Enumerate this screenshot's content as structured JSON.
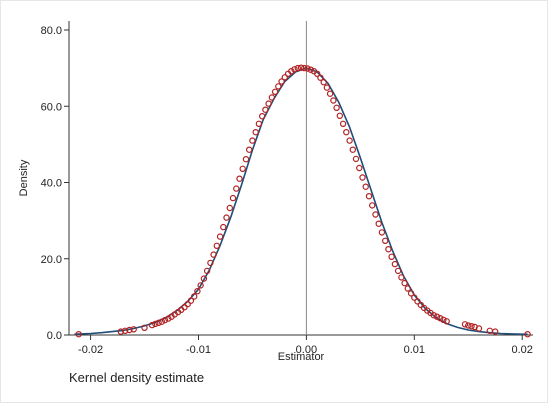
{
  "chart_data": {
    "type": "line",
    "title": "",
    "xlabel": "Estimator",
    "ylabel": "Density",
    "note": "Kernel density estimate",
    "xlim": [
      -0.022,
      0.021
    ],
    "ylim": [
      0,
      80
    ],
    "x_ticks": [
      -0.02,
      -0.01,
      0.0,
      0.01,
      0.02
    ],
    "x_tick_labels": [
      "-0.02",
      "-0.01",
      "0.00",
      "0.01",
      "0.02"
    ],
    "y_ticks": [
      0,
      20,
      40,
      60,
      80
    ],
    "y_tick_labels": [
      "0.0",
      "20.0",
      "40.0",
      "60.0",
      "80.0"
    ],
    "reference_line_x": 0.0,
    "grid": false,
    "legend": "none",
    "colors": {
      "curve": "#1f4e79",
      "points": "#b22222",
      "reference": "#888888",
      "axis": "#333333"
    },
    "series": [
      {
        "kind": "density-curve",
        "x": [
          -0.0215,
          -0.02,
          -0.019,
          -0.018,
          -0.017,
          -0.016,
          -0.015,
          -0.014,
          -0.013,
          -0.012,
          -0.011,
          -0.01,
          -0.009,
          -0.008,
          -0.007,
          -0.006,
          -0.005,
          -0.004,
          -0.003,
          -0.002,
          -0.001,
          0.0,
          0.001,
          0.002,
          0.003,
          0.004,
          0.005,
          0.006,
          0.007,
          0.008,
          0.009,
          0.01,
          0.011,
          0.012,
          0.013,
          0.014,
          0.015,
          0.016,
          0.017,
          0.018,
          0.019,
          0.02,
          0.0205
        ],
        "y": [
          0.2,
          0.4,
          0.6,
          0.9,
          1.2,
          1.7,
          2.4,
          3.3,
          4.6,
          6.4,
          8.8,
          12.0,
          17.0,
          23.5,
          31.0,
          39.5,
          48.5,
          56.5,
          62.0,
          66.5,
          69.0,
          70.0,
          69.0,
          66.0,
          61.0,
          54.5,
          46.5,
          38.0,
          29.5,
          22.0,
          15.5,
          10.5,
          7.0,
          4.6,
          3.0,
          2.0,
          1.3,
          0.9,
          0.6,
          0.4,
          0.3,
          0.2,
          0.2
        ]
      },
      {
        "kind": "estimate-points",
        "x": [
          -0.0211,
          -0.0172,
          -0.0168,
          -0.0164,
          -0.016,
          -0.015,
          -0.0143,
          -0.014,
          -0.0137,
          -0.0134,
          -0.0131,
          -0.0128,
          -0.0125,
          -0.0122,
          -0.0119,
          -0.0116,
          -0.0113,
          -0.011,
          -0.0107,
          -0.0104,
          -0.0101,
          -0.0098,
          -0.0095,
          -0.0092,
          -0.0089,
          -0.0086,
          -0.0083,
          -0.008,
          -0.0077,
          -0.0074,
          -0.0071,
          -0.0068,
          -0.0065,
          -0.0062,
          -0.0059,
          -0.0056,
          -0.0053,
          -0.005,
          -0.0047,
          -0.0044,
          -0.0041,
          -0.0038,
          -0.0035,
          -0.0032,
          -0.0029,
          -0.0026,
          -0.0023,
          -0.002,
          -0.0017,
          -0.0014,
          -0.0011,
          -0.0008,
          -0.0005,
          -0.0002,
          0.0001,
          0.0004,
          0.0007,
          0.001,
          0.0013,
          0.0016,
          0.0019,
          0.0022,
          0.0025,
          0.0028,
          0.0031,
          0.0034,
          0.0037,
          0.004,
          0.0043,
          0.0046,
          0.0049,
          0.0052,
          0.0055,
          0.0058,
          0.0061,
          0.0064,
          0.0067,
          0.007,
          0.0073,
          0.0076,
          0.0079,
          0.0082,
          0.0085,
          0.0088,
          0.0091,
          0.0094,
          0.0097,
          0.01,
          0.0103,
          0.0106,
          0.0109,
          0.0112,
          0.0115,
          0.0118,
          0.0121,
          0.0124,
          0.0127,
          0.013,
          0.0147,
          0.015,
          0.0153,
          0.0156,
          0.016,
          0.017,
          0.0175,
          0.0205
        ],
        "y": [
          0.2,
          0.9,
          1.1,
          1.3,
          1.5,
          1.9,
          2.6,
          2.9,
          3.2,
          3.5,
          3.9,
          4.3,
          4.8,
          5.4,
          6.0,
          6.6,
          7.3,
          8.1,
          9.0,
          10.1,
          11.5,
          13.0,
          14.8,
          16.8,
          18.9,
          21.1,
          23.4,
          25.8,
          28.3,
          30.8,
          33.3,
          35.9,
          38.4,
          41.0,
          43.6,
          46.1,
          48.6,
          51.0,
          53.2,
          55.4,
          57.4,
          59.1,
          60.7,
          62.3,
          63.8,
          65.2,
          66.5,
          67.6,
          68.5,
          69.2,
          69.7,
          70.0,
          70.1,
          70.0,
          69.9,
          69.6,
          69.2,
          68.5,
          67.5,
          66.3,
          64.9,
          63.3,
          61.5,
          59.6,
          57.5,
          55.4,
          53.2,
          51.0,
          48.6,
          46.2,
          43.8,
          41.3,
          38.9,
          36.4,
          34.0,
          31.6,
          29.2,
          26.9,
          24.7,
          22.5,
          20.5,
          18.6,
          16.8,
          15.1,
          13.6,
          12.2,
          10.9,
          9.8,
          8.8,
          7.9,
          7.1,
          6.4,
          5.8,
          5.2,
          4.8,
          4.4,
          4.0,
          3.6,
          2.8,
          2.5,
          2.3,
          2.1,
          1.7,
          1.1,
          0.9,
          0.2
        ]
      }
    ]
  }
}
